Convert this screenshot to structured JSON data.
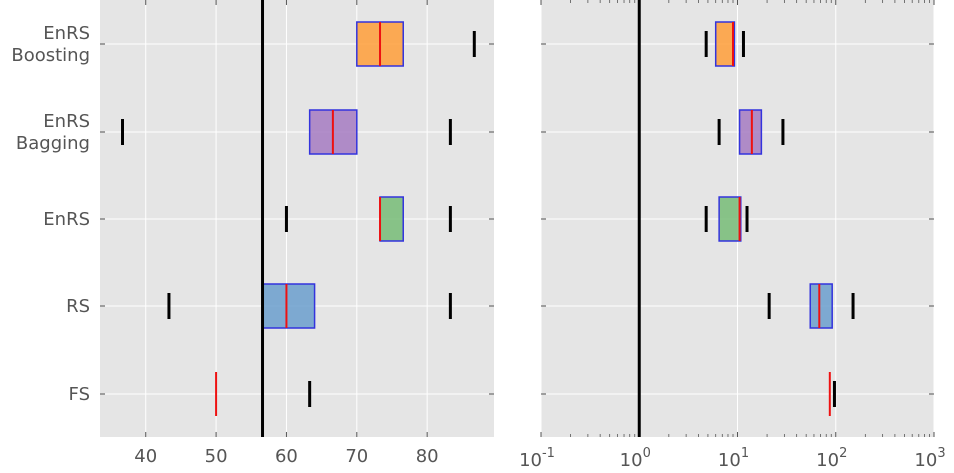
{
  "chart_data": [
    {
      "type": "box",
      "categories": [
        "EnRS\nBoosting",
        "EnRS\nBagging",
        "EnRS",
        "RS",
        "FS"
      ],
      "xlim": [
        33.5,
        89.5
      ],
      "xticks": [
        40,
        50,
        60,
        70,
        80
      ],
      "xtick_labels": [
        "40",
        "50",
        "60",
        "70",
        "80"
      ],
      "reference_line": 56.6,
      "grid": true,
      "boxes": [
        {
          "whisker_low": null,
          "q1": 70.0,
          "median": 73.3,
          "q3": 76.6,
          "whisker_high": 86.7,
          "color": "#ff9f3a"
        },
        {
          "whisker_low": 36.7,
          "q1": 63.3,
          "median": 66.6,
          "q3": 70.0,
          "whisker_high": 83.3,
          "color": "#a67bc2"
        },
        {
          "whisker_low": 60.0,
          "q1": 73.3,
          "median": 73.3,
          "q3": 76.6,
          "whisker_high": 83.3,
          "color": "#77bc77"
        },
        {
          "whisker_low": 43.3,
          "q1": 56.6,
          "median": 60.0,
          "q3": 64.0,
          "whisker_high": 83.3,
          "color": "#6b9fce"
        },
        {
          "whisker_low": null,
          "q1": 50.0,
          "median": 50.0,
          "q3": 50.0,
          "whisker_high": 63.3,
          "color": "#6b9fce"
        }
      ]
    },
    {
      "type": "box",
      "scale": "log",
      "xlim": [
        0.1,
        1000
      ],
      "xticks": [
        0.1,
        1,
        10,
        100,
        1000
      ],
      "xtick_labels": [
        {
          "base": "10",
          "exp": "-1"
        },
        {
          "base": "10",
          "exp": "0"
        },
        {
          "base": "10",
          "exp": "1"
        },
        {
          "base": "10",
          "exp": "2"
        },
        {
          "base": "10",
          "exp": "3"
        }
      ],
      "reference_line": 1,
      "grid": true,
      "boxes": [
        {
          "whisker_low": 4.8,
          "q1": 6.0,
          "median": 9.0,
          "q3": 9.3,
          "whisker_high": 11.5,
          "color": "#ff9f3a"
        },
        {
          "whisker_low": 6.5,
          "q1": 10.5,
          "median": 14.0,
          "q3": 17.5,
          "whisker_high": 29.0,
          "color": "#a67bc2"
        },
        {
          "whisker_low": 4.8,
          "q1": 6.5,
          "median": 10.5,
          "q3": 10.8,
          "whisker_high": 12.5,
          "color": "#77bc77"
        },
        {
          "whisker_low": 21.0,
          "q1": 55.0,
          "median": 68.0,
          "q3": 92.0,
          "whisker_high": 150.0,
          "color": "#6b9fce"
        },
        {
          "whisker_low": null,
          "q1": 87.0,
          "median": 87.0,
          "q3": 87.0,
          "whisker_high": 97.0,
          "color": "#6b9fce"
        }
      ]
    }
  ]
}
